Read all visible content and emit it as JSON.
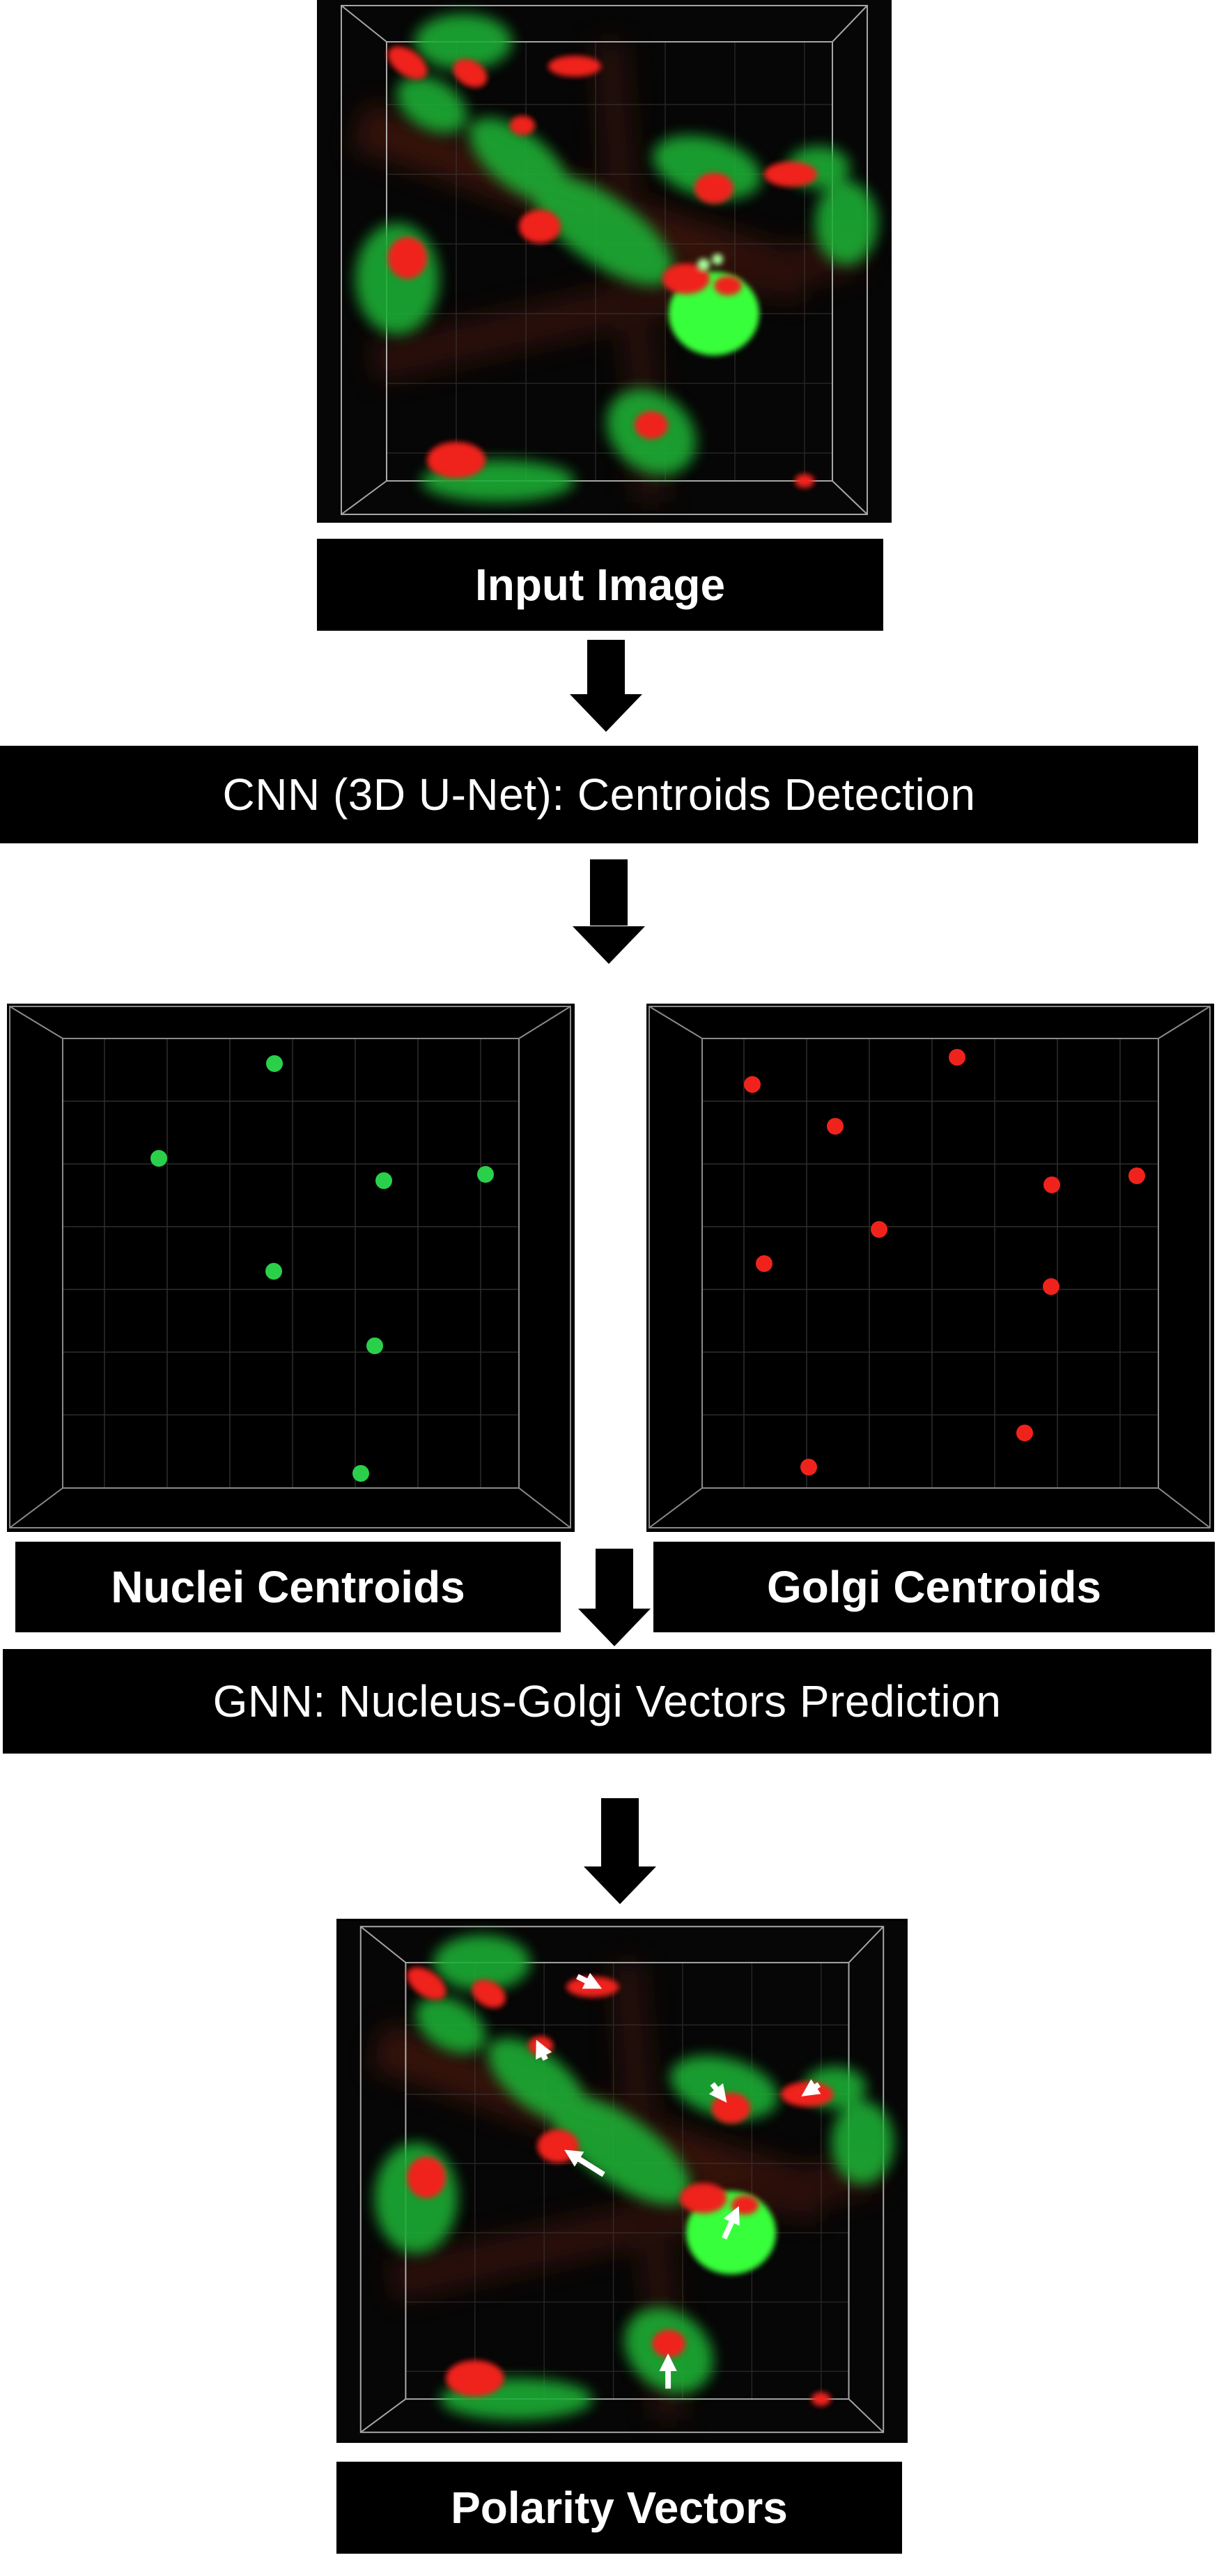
{
  "labels": {
    "input_image": "Input Image",
    "cnn_step": "CNN  (3D U-Net): Centroids Detection",
    "nuclei_centroids": "Nuclei Centroids",
    "golgi_centroids": "Golgi Centroids",
    "gnn_step": "GNN: Nucleus-Golgi Vectors Prediction",
    "polarity_vectors": "Polarity Vectors"
  },
  "colors": {
    "nucleus_green": "#2bd04a",
    "golgi_red": "#f0231c",
    "background": "#000000",
    "grid": "#3a3a3a"
  }
}
